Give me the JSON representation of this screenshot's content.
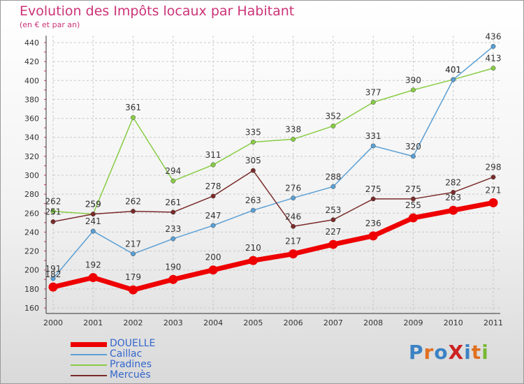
{
  "title": "Evolution des Impôts locaux par Habitant",
  "subtitle": "(en € et par an)",
  "logo": {
    "text": "ProXiti",
    "colors": [
      "#3b82c4",
      "#e07020",
      "#3b82c4",
      "#cc2222",
      "#3b82c4",
      "#e07020",
      "#78b833"
    ]
  },
  "chart_data": {
    "type": "line",
    "x": [
      "2000",
      "2001",
      "2002",
      "2003",
      "2004",
      "2005",
      "2006",
      "2007",
      "2008",
      "2009",
      "2010",
      "2011"
    ],
    "ylim": [
      160,
      440
    ],
    "yticks": [
      160,
      180,
      200,
      220,
      240,
      260,
      280,
      300,
      320,
      340,
      360,
      380,
      400,
      420,
      440
    ],
    "grid": "horizontal dashed",
    "legend": "bottom-left",
    "series": [
      {
        "name": "Pradines",
        "color": "#88cc44",
        "values": [
          262,
          259,
          361,
          294,
          311,
          335,
          338,
          352,
          377,
          390,
          401,
          413
        ]
      },
      {
        "name": "Caillac",
        "color": "#5a9fd4",
        "values": [
          191,
          241,
          217,
          233,
          247,
          263,
          276,
          288,
          331,
          320,
          401,
          436
        ]
      },
      {
        "name": "Mercuès",
        "color": "#7a2a2a",
        "values": [
          251,
          259,
          262,
          261,
          278,
          305,
          246,
          253,
          275,
          275,
          282,
          298
        ]
      },
      {
        "name": "DOUELLE",
        "color": "#ee0000",
        "values": [
          182,
          192,
          179,
          190,
          200,
          210,
          217,
          227,
          236,
          255,
          263,
          271
        ]
      }
    ]
  },
  "legend_order": [
    "DOUELLE",
    "Caillac",
    "Pradines",
    "Mercuès"
  ]
}
